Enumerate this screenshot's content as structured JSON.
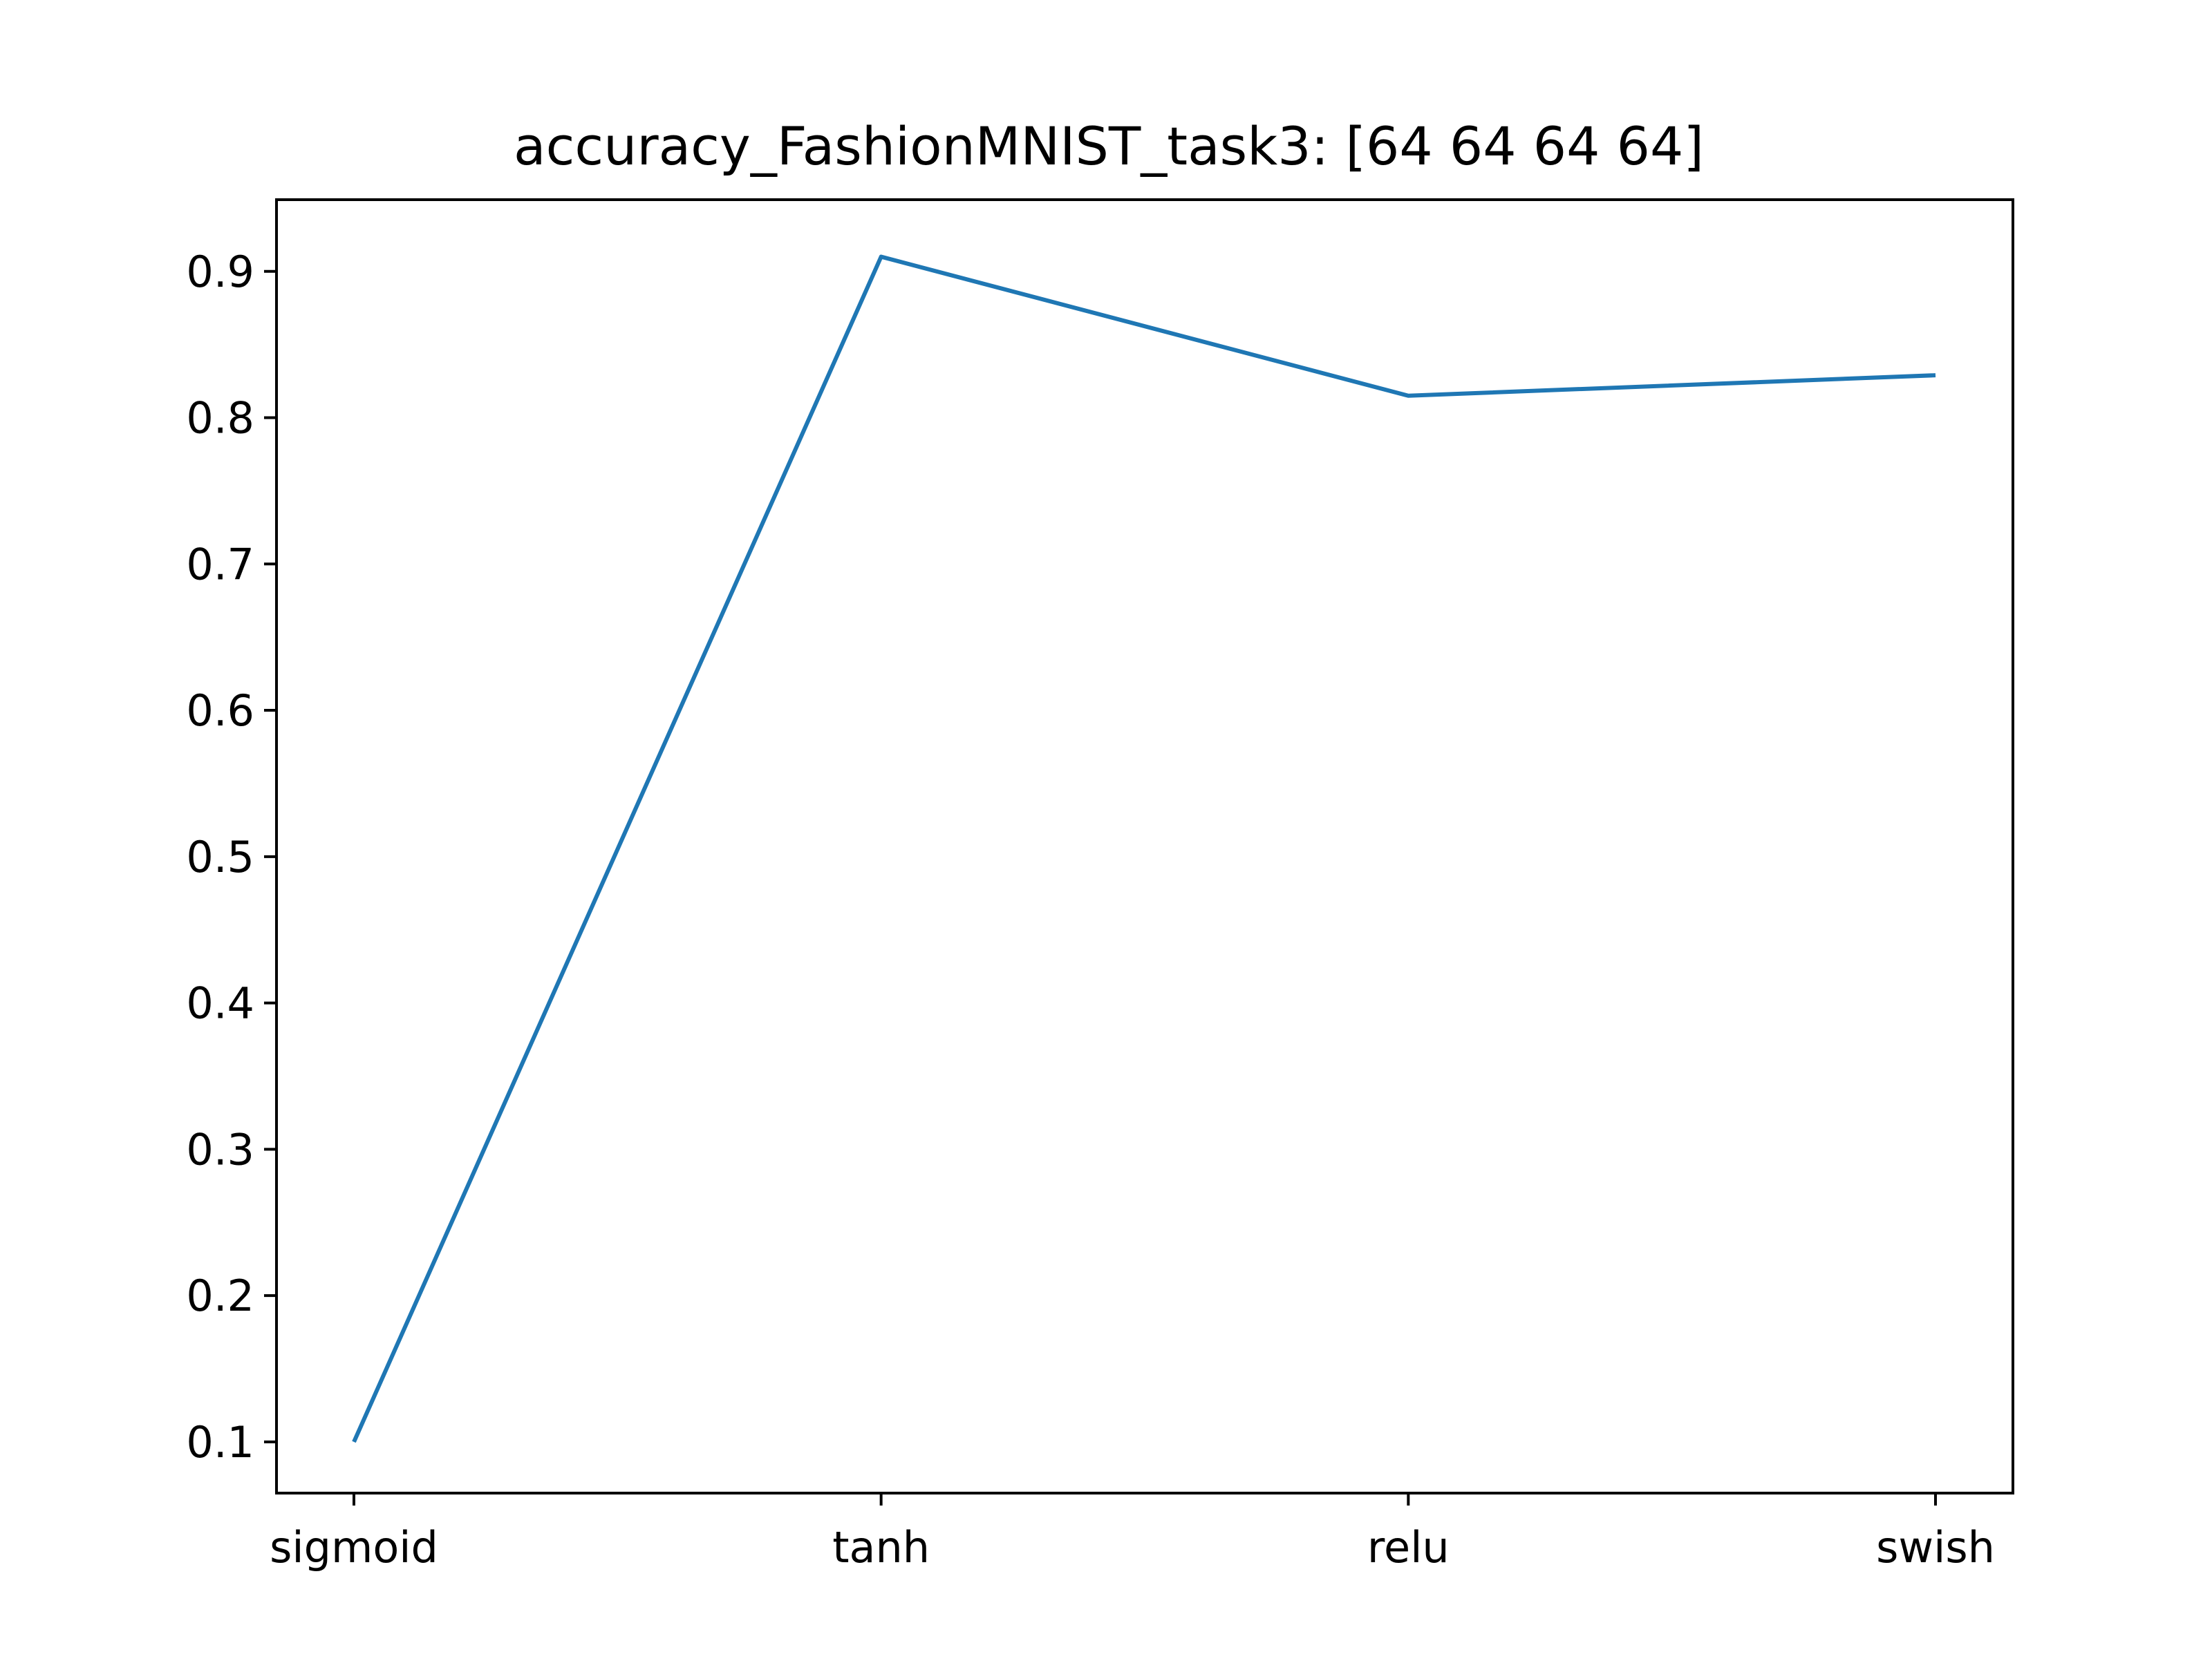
{
  "chart_data": {
    "type": "line",
    "title": "accuracy_FashionMNIST_task3: [64 64 64 64]",
    "xlabel": "",
    "ylabel": "",
    "categories": [
      "sigmoid",
      "tanh",
      "relu",
      "swish"
    ],
    "series": [
      {
        "values": [
          0.1,
          0.91,
          0.815,
          0.829
        ],
        "color": "#1f77b4"
      }
    ],
    "ylim": [
      0.065,
      0.949
    ],
    "yticks": [
      0.1,
      0.2,
      0.3,
      0.4,
      0.5,
      0.6,
      0.7,
      0.8,
      0.9
    ],
    "ytick_labels": [
      "0.1",
      "0.2",
      "0.3",
      "0.4",
      "0.5",
      "0.6",
      "0.7",
      "0.8",
      "0.9"
    ],
    "grid": false,
    "legend": "none"
  }
}
